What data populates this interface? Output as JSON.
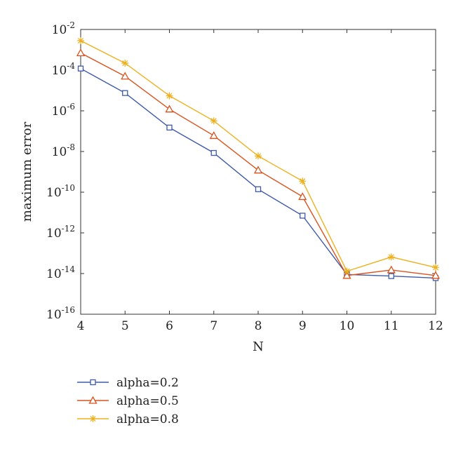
{
  "chart_data": {
    "type": "line",
    "title": "",
    "xlabel": "N",
    "ylabel": "maximum error",
    "x": [
      4,
      5,
      6,
      7,
      8,
      9,
      10,
      11,
      12
    ],
    "xlim": [
      4,
      12
    ],
    "xticks": [
      "4",
      "5",
      "6",
      "7",
      "8",
      "9",
      "10",
      "11",
      "12"
    ],
    "yscale": "log",
    "ylim": [
      1e-16,
      0.01
    ],
    "yticks": [
      {
        "base": "10",
        "exp": "-16",
        "value": 1e-16
      },
      {
        "base": "10",
        "exp": "-14",
        "value": 1e-14
      },
      {
        "base": "10",
        "exp": "-12",
        "value": 1e-12
      },
      {
        "base": "10",
        "exp": "-10",
        "value": 1e-10
      },
      {
        "base": "10",
        "exp": "-8",
        "value": 1e-08
      },
      {
        "base": "10",
        "exp": "-6",
        "value": 1e-06
      },
      {
        "base": "10",
        "exp": "-4",
        "value": 0.0001
      },
      {
        "base": "10",
        "exp": "-2",
        "value": 0.01
      }
    ],
    "grid": false,
    "legend_position": "below",
    "series": [
      {
        "name": "alpha=0.2",
        "color": "#3f5aa8",
        "marker": "square",
        "values": [
          0.00012,
          7.5e-06,
          1.5e-07,
          8.5e-09,
          1.4e-10,
          7e-12,
          9e-15,
          7.5e-15,
          6e-15
        ]
      },
      {
        "name": "alpha=0.5",
        "color": "#d9531e",
        "marker": "triangle",
        "values": [
          0.0007,
          5e-05,
          1.2e-06,
          6e-08,
          1.2e-09,
          6e-11,
          8e-15,
          1.5e-14,
          8e-15
        ]
      },
      {
        "name": "alpha=0.8",
        "color": "#edb120",
        "marker": "star",
        "values": [
          0.0028,
          0.00022,
          5.5e-06,
          3.2e-07,
          6e-09,
          3.5e-10,
          1.3e-14,
          6.5e-14,
          2e-14
        ]
      }
    ]
  }
}
